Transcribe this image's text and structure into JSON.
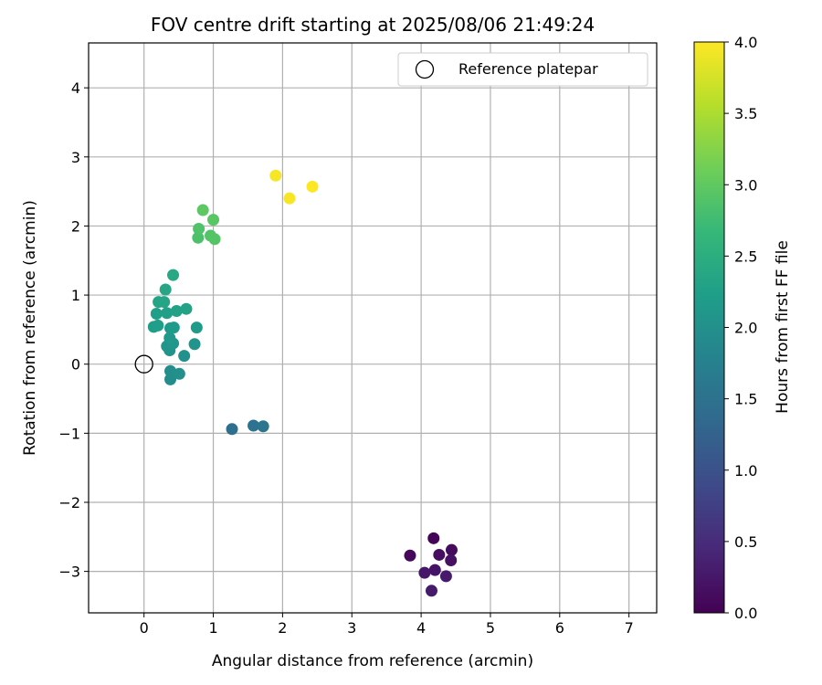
{
  "chart_data": {
    "type": "scatter",
    "title": "FOV centre drift starting at 2025/08/06 21:49:24",
    "xlabel": "Angular distance from reference (arcmin)",
    "ylabel": "Rotation from reference (arcmin)",
    "xlim": [
      -0.8,
      7.4
    ],
    "ylim": [
      -3.6,
      4.65
    ],
    "x_ticks": [
      0,
      1,
      2,
      3,
      4,
      5,
      6,
      7
    ],
    "y_ticks": [
      -3,
      -2,
      -1,
      0,
      1,
      2,
      3,
      4
    ],
    "grid": true,
    "legend": {
      "placement": "top-right",
      "entries": [
        "Reference platepar"
      ]
    },
    "reference_point": {
      "x": 0,
      "y": 0,
      "label": "Reference platepar"
    },
    "colorbar": {
      "label": "Hours from first FF file",
      "colormap": "viridis",
      "range": [
        0.0,
        4.0
      ],
      "ticks": [
        "0.0",
        "0.5",
        "1.0",
        "1.5",
        "2.0",
        "2.5",
        "3.0",
        "3.5",
        "4.0"
      ]
    },
    "points": [
      {
        "x": 4.18,
        "y": -2.52,
        "c": 0.05
      },
      {
        "x": 3.84,
        "y": -2.77,
        "c": 0.08
      },
      {
        "x": 4.44,
        "y": -2.69,
        "c": 0.12
      },
      {
        "x": 4.26,
        "y": -2.76,
        "c": 0.15
      },
      {
        "x": 4.43,
        "y": -2.84,
        "c": 0.18
      },
      {
        "x": 4.2,
        "y": -2.98,
        "c": 0.22
      },
      {
        "x": 4.05,
        "y": -3.02,
        "c": 0.25
      },
      {
        "x": 4.36,
        "y": -3.07,
        "c": 0.28
      },
      {
        "x": 4.15,
        "y": -3.28,
        "c": 0.3
      },
      {
        "x": 1.27,
        "y": -0.94,
        "c": 1.45
      },
      {
        "x": 1.58,
        "y": -0.89,
        "c": 1.5
      },
      {
        "x": 1.72,
        "y": -0.9,
        "c": 1.55
      },
      {
        "x": 0.38,
        "y": -0.22,
        "c": 1.95
      },
      {
        "x": 0.38,
        "y": -0.1,
        "c": 1.97
      },
      {
        "x": 0.51,
        "y": -0.14,
        "c": 2.0
      },
      {
        "x": 0.58,
        "y": 0.12,
        "c": 2.02
      },
      {
        "x": 0.37,
        "y": 0.2,
        "c": 2.04
      },
      {
        "x": 0.73,
        "y": 0.29,
        "c": 2.06
      },
      {
        "x": 0.33,
        "y": 0.26,
        "c": 2.08
      },
      {
        "x": 0.42,
        "y": 0.3,
        "c": 2.1
      },
      {
        "x": 0.37,
        "y": 0.38,
        "c": 2.12
      },
      {
        "x": 0.38,
        "y": 0.52,
        "c": 2.14
      },
      {
        "x": 0.76,
        "y": 0.53,
        "c": 2.16
      },
      {
        "x": 0.43,
        "y": 0.53,
        "c": 2.18
      },
      {
        "x": 0.14,
        "y": 0.54,
        "c": 2.2
      },
      {
        "x": 0.2,
        "y": 0.56,
        "c": 2.22
      },
      {
        "x": 0.18,
        "y": 0.73,
        "c": 2.24
      },
      {
        "x": 0.33,
        "y": 0.74,
        "c": 2.26
      },
      {
        "x": 0.47,
        "y": 0.77,
        "c": 2.28
      },
      {
        "x": 0.61,
        "y": 0.8,
        "c": 2.3
      },
      {
        "x": 0.21,
        "y": 0.9,
        "c": 2.32
      },
      {
        "x": 0.29,
        "y": 0.9,
        "c": 2.34
      },
      {
        "x": 0.31,
        "y": 1.08,
        "c": 2.36
      },
      {
        "x": 0.42,
        "y": 1.29,
        "c": 2.4
      },
      {
        "x": 0.78,
        "y": 1.83,
        "c": 2.85
      },
      {
        "x": 0.79,
        "y": 1.96,
        "c": 2.88
      },
      {
        "x": 0.96,
        "y": 1.86,
        "c": 2.9
      },
      {
        "x": 1.02,
        "y": 1.81,
        "c": 2.92
      },
      {
        "x": 1.0,
        "y": 2.09,
        "c": 2.95
      },
      {
        "x": 0.85,
        "y": 2.23,
        "c": 2.98
      },
      {
        "x": 1.9,
        "y": 2.73,
        "c": 3.95
      },
      {
        "x": 2.1,
        "y": 2.4,
        "c": 3.97
      },
      {
        "x": 2.43,
        "y": 2.57,
        "c": 4.0
      }
    ]
  }
}
